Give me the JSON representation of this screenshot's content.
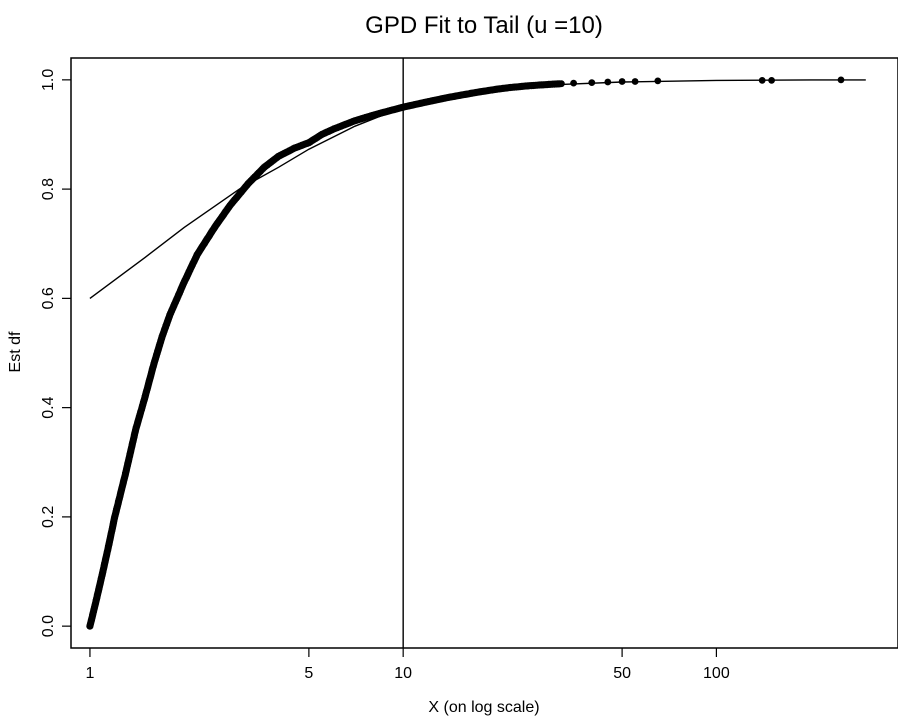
{
  "chart_data": {
    "type": "scatter",
    "title": "GPD Fit to Tail (u =10)",
    "xlabel": "X (on log scale)",
    "ylabel": "Est df",
    "x_scale": "log",
    "xlim": [
      0.87,
      380
    ],
    "ylim": [
      -0.04,
      1.04
    ],
    "x_ticks": [
      {
        "value": 1,
        "label": "1"
      },
      {
        "value": 5,
        "label": "5"
      },
      {
        "value": 10,
        "label": "10"
      },
      {
        "value": 50,
        "label": "50"
      },
      {
        "value": 100,
        "label": "100"
      }
    ],
    "y_ticks": [
      {
        "value": 0.0,
        "label": "0.0"
      },
      {
        "value": 0.2,
        "label": "0.2"
      },
      {
        "value": 0.4,
        "label": "0.4"
      },
      {
        "value": 0.6,
        "label": "0.6"
      },
      {
        "value": 0.8,
        "label": "0.8"
      },
      {
        "value": 1.0,
        "label": "1.0"
      }
    ],
    "threshold_line": {
      "x": 10
    },
    "series": [
      {
        "kind": "points",
        "points": [
          [
            1.0,
            0.0
          ],
          [
            1.05,
            0.05
          ],
          [
            1.1,
            0.1
          ],
          [
            1.15,
            0.15
          ],
          [
            1.2,
            0.2
          ],
          [
            1.3,
            0.28
          ],
          [
            1.4,
            0.36
          ],
          [
            1.5,
            0.42
          ],
          [
            1.6,
            0.48
          ],
          [
            1.7,
            0.53
          ],
          [
            1.8,
            0.57
          ],
          [
            2.0,
            0.63
          ],
          [
            2.2,
            0.68
          ],
          [
            2.5,
            0.73
          ],
          [
            2.8,
            0.77
          ],
          [
            3.2,
            0.81
          ],
          [
            3.6,
            0.84
          ],
          [
            4.0,
            0.86
          ],
          [
            4.5,
            0.875
          ],
          [
            5.0,
            0.885
          ],
          [
            5.5,
            0.9
          ],
          [
            6.0,
            0.91
          ],
          [
            7.0,
            0.925
          ],
          [
            8.0,
            0.935
          ],
          [
            9.0,
            0.943
          ],
          [
            10.0,
            0.95
          ],
          [
            12.0,
            0.96
          ],
          [
            14.0,
            0.968
          ],
          [
            16.0,
            0.974
          ],
          [
            18.0,
            0.979
          ],
          [
            20.0,
            0.983
          ],
          [
            22.0,
            0.986
          ],
          [
            25.0,
            0.989
          ],
          [
            28.0,
            0.991
          ],
          [
            30.0,
            0.992
          ],
          [
            32.0,
            0.993
          ],
          [
            35.0,
            0.994
          ],
          [
            40.0,
            0.995
          ],
          [
            45.0,
            0.996
          ],
          [
            50.0,
            0.997
          ],
          [
            55.0,
            0.997
          ],
          [
            65.0,
            0.998
          ],
          [
            140.0,
            0.999
          ],
          [
            150.0,
            0.999
          ],
          [
            250.0,
            1.0
          ]
        ]
      },
      {
        "kind": "line",
        "points": [
          [
            1.0,
            0.6
          ],
          [
            1.5,
            0.675
          ],
          [
            2.0,
            0.73
          ],
          [
            3.0,
            0.8
          ],
          [
            4.0,
            0.84
          ],
          [
            5.0,
            0.873
          ],
          [
            7.0,
            0.915
          ],
          [
            10.0,
            0.95
          ],
          [
            15.0,
            0.972
          ],
          [
            20.0,
            0.982
          ],
          [
            30.0,
            0.991
          ],
          [
            50.0,
            0.996
          ],
          [
            100.0,
            0.999
          ],
          [
            200.0,
            1.0
          ],
          [
            300.0,
            1.0
          ]
        ]
      }
    ]
  }
}
